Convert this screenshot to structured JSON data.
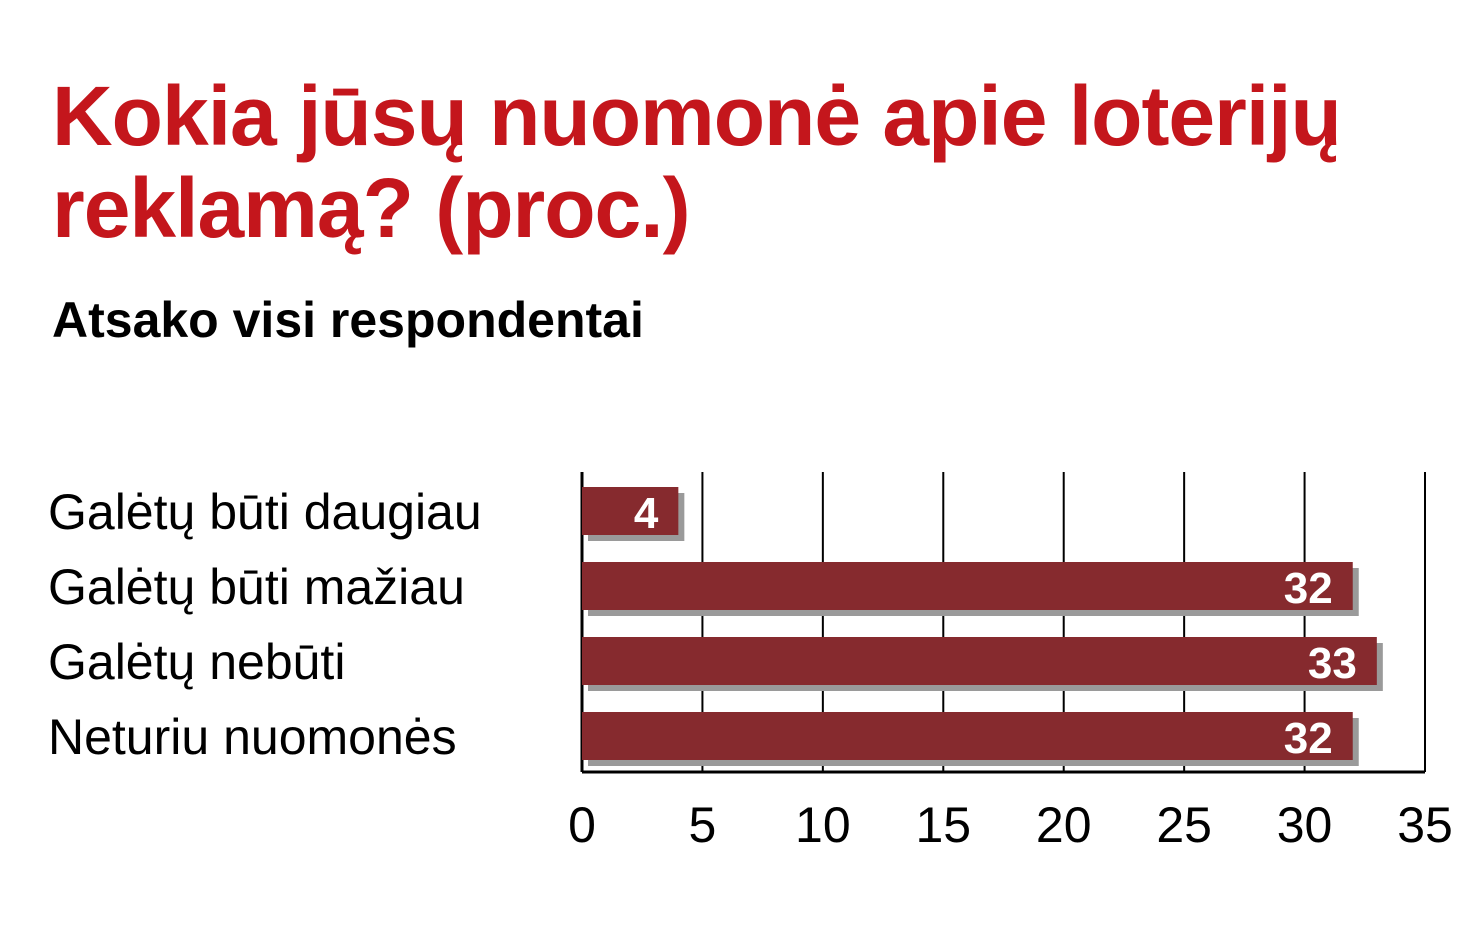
{
  "title": "Kokia jūsų nuomonė apie loterijų reklamą? (proc.)",
  "subtitle": "Atsako visi respondentai",
  "colors": {
    "title": "#c4161c",
    "bar": "#862a2e",
    "bar_shadow": "#9a9a9a",
    "bar_label": "#ffffff",
    "text": "#000000",
    "grid": "#000000"
  },
  "chart_data": {
    "type": "bar",
    "orientation": "horizontal",
    "categories": [
      "Galėtų būti daugiau",
      "Galėtų būti mažiau",
      "Galėtų nebūti",
      "Neturiu nuomonės"
    ],
    "values": [
      4,
      32,
      33,
      32
    ],
    "value_labels": [
      "4",
      "32",
      "33",
      "32"
    ],
    "xlim": [
      0,
      35
    ],
    "xticks": [
      "0",
      "5",
      "10",
      "15",
      "20",
      "25",
      "30",
      "35"
    ],
    "grid": true
  }
}
